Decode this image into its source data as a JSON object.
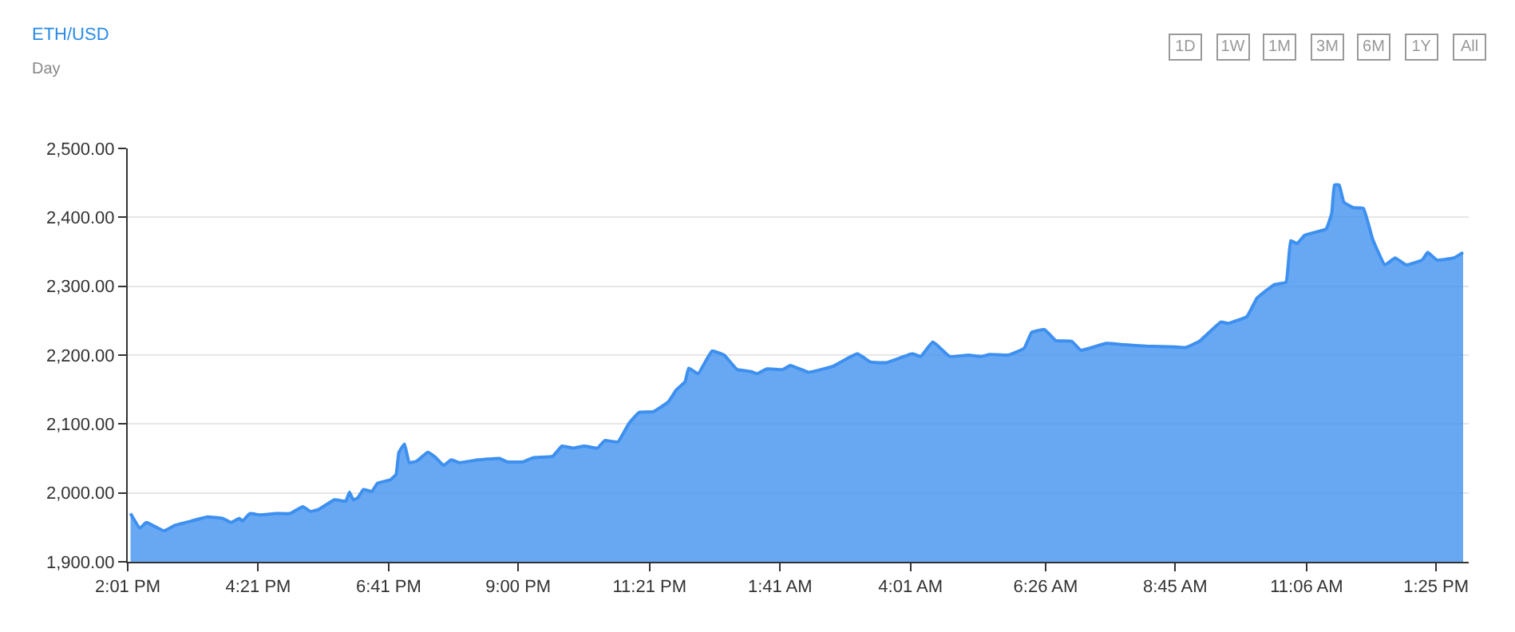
{
  "chart_data": {
    "type": "area",
    "title": "ETH/USD",
    "subtitle": "Day",
    "annotations": [
      "1D",
      "1W",
      "1M",
      "3M",
      "6M",
      "1Y",
      "All"
    ],
    "series": [
      {
        "color": "#3d90ef",
        "x": [
          "--01-01T14:04",
          "--01-01T14:14",
          "--01-01T14:21",
          "--01-01T14:40",
          "--01-01T14:52",
          "--01-01T15:09",
          "--01-01T15:26",
          "--01-01T15:43",
          "--01-01T15:52",
          "--01-01T16:01",
          "--01-01T16:04",
          "--01-01T16:12",
          "--01-01T16:23",
          "--01-01T16:40",
          "--01-01T16:55",
          "--01-01T17:09",
          "--01-01T17:17",
          "--01-01T17:26",
          "--01-01T17:43",
          "--01-01T17:55",
          "--01-01T17:59",
          "--01-01T18:03",
          "--01-01T18:08",
          "--01-01T18:14",
          "--01-01T18:23",
          "--01-01T18:29",
          "--01-01T18:43",
          "--01-01T18:49",
          "--01-01T18:52",
          "--01-01T18:58",
          "--01-01T19:03",
          "--01-01T19:11",
          "--01-01T19:23",
          "--01-01T19:31",
          "--01-01T19:40",
          "--01-01T19:48",
          "--01-01T19:57",
          "--01-01T20:17",
          "--01-01T20:40",
          "--01-01T20:48",
          "--01-01T21:05",
          "--01-01T21:16",
          "--01-01T21:37",
          "--01-01T21:47",
          "--01-01T21:59",
          "--01-01T22:11",
          "--01-01T22:25",
          "--01-01T22:33",
          "--01-01T22:47",
          "--01-01T22:59",
          "--01-01T23:10",
          "--01-01T23:25",
          "--01-01T23:41",
          "--01-01T23:50",
          "--01-01T23:59",
          "--01-02T00:03",
          "--01-02T00:13",
          "--01-02T00:28",
          "--01-02T00:41",
          "--01-02T00:55",
          "--01-02T01:10",
          "--01-02T01:16",
          "--01-02T01:27",
          "--01-02T01:44",
          "--01-02T01:52",
          "--01-02T02:12",
          "--01-02T02:38",
          "--01-02T03:04",
          "--01-02T03:18",
          "--01-02T03:35",
          "--01-02T04:03",
          "--01-02T04:12",
          "--01-02T04:25",
          "--01-02T04:43",
          "--01-02T05:03",
          "--01-02T05:17",
          "--01-02T05:26",
          "--01-02T05:46",
          "--01-02T06:03",
          "--01-02T06:11",
          "--01-02T06:25",
          "--01-02T06:37",
          "--01-02T06:54",
          "--01-02T07:04",
          "--01-02T07:31",
          "--01-02T07:51",
          "--01-02T08:14",
          "--01-02T08:45",
          "--01-02T08:56",
          "--01-02T09:11",
          "--01-02T09:34",
          "--01-02T09:42",
          "--01-02T10:02",
          "--01-02T10:13",
          "--01-02T10:31",
          "--01-02T10:44",
          "--01-02T10:49",
          "--01-02T10:56",
          "--01-02T11:04",
          "--01-02T11:27",
          "--01-02T11:33",
          "--01-02T11:36",
          "--01-02T11:41",
          "--01-02T11:46",
          "--01-02T11:56",
          "--01-02T12:07",
          "--01-02T12:17",
          "--01-02T12:30",
          "--01-02T12:41",
          "--01-02T12:53",
          "--01-02T13:10",
          "--01-02T13:16",
          "--01-02T13:26",
          "--01-02T13:44",
          "--01-02T13:54"
        ],
        "values": [
          1970,
          1949,
          1957,
          1945,
          1953,
          1959,
          1965,
          1963,
          1957,
          1963,
          1959,
          1970,
          1968,
          1970,
          1970,
          1980,
          1973,
          1976,
          1990,
          1988,
          2001,
          1990,
          1993,
          2005,
          2002,
          2014,
          2019,
          2027,
          2059,
          2071,
          2044,
          2046,
          2059,
          2052,
          2040,
          2048,
          2044,
          2048,
          2050,
          2045,
          2045,
          2051,
          2053,
          2068,
          2065,
          2068,
          2065,
          2076,
          2074,
          2101,
          2117,
          2118,
          2132,
          2150,
          2161,
          2181,
          2173,
          2206,
          2200,
          2179,
          2176,
          2173,
          2180,
          2179,
          2185,
          2175,
          2184,
          2202,
          2190,
          2189,
          2202,
          2198,
          2219,
          2198,
          2200,
          2198,
          2201,
          2200,
          2210,
          2233,
          2237,
          2221,
          2220,
          2207,
          2217,
          2215,
          2213,
          2212,
          2211,
          2220,
          2248,
          2246,
          2256,
          2283,
          2302,
          2306,
          2366,
          2362,
          2374,
          2383,
          2406,
          2447,
          2447,
          2422,
          2414,
          2413,
          2368,
          2331,
          2341,
          2331,
          2338,
          2349,
          2338,
          2341,
          2349
        ]
      }
    ],
    "xlim": [
      "--01-01T14:01",
      "--01-02T14:00"
    ],
    "xticks": [
      {
        "value": "--01-01T14:01",
        "label": "2:01 PM"
      },
      {
        "value": "--01-01T16:21",
        "label": "4:21 PM"
      },
      {
        "value": "--01-01T18:41",
        "label": "6:41 PM"
      },
      {
        "value": "--01-01T21:00",
        "label": "9:00 PM"
      },
      {
        "value": "--01-01T23:21",
        "label": "11:21 PM"
      },
      {
        "value": "--01-02T01:41",
        "label": "1:41 AM"
      },
      {
        "value": "--01-02T04:01",
        "label": "4:01 AM"
      },
      {
        "value": "--01-02T06:26",
        "label": "6:26 AM"
      },
      {
        "value": "--01-02T08:45",
        "label": "8:45 AM"
      },
      {
        "value": "--01-02T11:06",
        "label": "11:06 AM"
      },
      {
        "value": "--01-02T13:25",
        "label": "1:25 PM"
      }
    ],
    "ylim": [
      1900,
      2500
    ],
    "yticks": [
      {
        "value": 1900,
        "label": "1,900.00"
      },
      {
        "value": 2000,
        "label": "2,000.00"
      },
      {
        "value": 2100,
        "label": "2,100.00"
      },
      {
        "value": 2200,
        "label": "2,200.00"
      },
      {
        "value": 2300,
        "label": "2,300.00"
      },
      {
        "value": 2400,
        "label": "2,400.00"
      },
      {
        "value": 2500,
        "label": "2,500.00"
      }
    ],
    "grid": "y"
  }
}
